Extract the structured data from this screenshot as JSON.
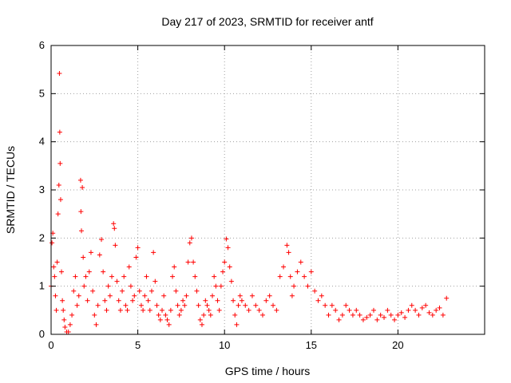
{
  "chart_data": {
    "type": "scatter",
    "title": "Day 217 of 2023, SRMTID for receiver antf",
    "xlabel": "GPS time / hours",
    "ylabel": "SRMTID / TECUs",
    "xlim": [
      0,
      25
    ],
    "ylim": [
      0,
      6
    ],
    "xticks": [
      0,
      5,
      10,
      15,
      20
    ],
    "yticks": [
      0,
      1,
      2,
      3,
      4,
      5,
      6
    ],
    "grid": true,
    "marker": "plus",
    "color": "#ff0000",
    "series": [
      {
        "name": "antf",
        "x": [
          0.0,
          0.05,
          0.1,
          0.15,
          0.2,
          0.25,
          0.3,
          0.35,
          0.4,
          0.45,
          0.48,
          0.5,
          0.52,
          0.55,
          0.6,
          0.65,
          0.7,
          0.75,
          0.8,
          0.9,
          1.0,
          1.1,
          1.2,
          1.3,
          1.4,
          1.5,
          1.6,
          1.7,
          1.72,
          1.75,
          1.8,
          1.85,
          1.9,
          2.0,
          2.1,
          2.2,
          2.3,
          2.4,
          2.5,
          2.6,
          2.7,
          2.8,
          2.9,
          3.0,
          3.1,
          3.2,
          3.3,
          3.4,
          3.5,
          3.6,
          3.65,
          3.7,
          3.8,
          3.9,
          4.0,
          4.1,
          4.2,
          4.3,
          4.4,
          4.5,
          4.6,
          4.7,
          4.8,
          4.9,
          5.0,
          5.1,
          5.2,
          5.3,
          5.4,
          5.5,
          5.6,
          5.7,
          5.8,
          5.9,
          6.0,
          6.1,
          6.2,
          6.3,
          6.4,
          6.5,
          6.6,
          6.7,
          6.8,
          6.9,
          7.0,
          7.1,
          7.2,
          7.3,
          7.4,
          7.5,
          7.6,
          7.7,
          7.8,
          7.9,
          8.0,
          8.1,
          8.2,
          8.3,
          8.4,
          8.5,
          8.6,
          8.7,
          8.8,
          8.9,
          9.0,
          9.1,
          9.2,
          9.3,
          9.4,
          9.5,
          9.6,
          9.7,
          9.8,
          9.9,
          10.0,
          10.1,
          10.2,
          10.3,
          10.4,
          10.5,
          10.6,
          10.7,
          10.8,
          10.9,
          11.0,
          11.2,
          11.4,
          11.6,
          11.8,
          12.0,
          12.2,
          12.4,
          12.6,
          12.8,
          13.0,
          13.2,
          13.4,
          13.6,
          13.7,
          13.8,
          13.9,
          14.0,
          14.2,
          14.4,
          14.6,
          14.8,
          15.0,
          15.2,
          15.4,
          15.6,
          15.8,
          16.0,
          16.2,
          16.4,
          16.6,
          16.8,
          17.0,
          17.2,
          17.4,
          17.6,
          17.8,
          18.0,
          18.2,
          18.4,
          18.6,
          18.8,
          19.0,
          19.2,
          19.4,
          19.6,
          19.8,
          20.0,
          20.2,
          20.4,
          20.6,
          20.8,
          21.0,
          21.2,
          21.4,
          21.6,
          21.8,
          22.0,
          22.2,
          22.4,
          22.6,
          22.8
        ],
        "y": [
          1.0,
          1.9,
          2.1,
          1.4,
          1.2,
          0.8,
          0.5,
          1.5,
          2.5,
          3.1,
          5.42,
          4.2,
          3.55,
          2.8,
          1.3,
          0.7,
          0.5,
          0.3,
          0.15,
          0.05,
          0.05,
          0.2,
          0.4,
          0.9,
          1.2,
          0.6,
          0.8,
          3.2,
          2.55,
          2.15,
          3.05,
          1.6,
          1.0,
          1.2,
          0.7,
          1.3,
          1.7,
          0.9,
          0.4,
          0.2,
          0.6,
          1.65,
          1.97,
          1.3,
          0.7,
          0.5,
          1.0,
          0.8,
          1.2,
          2.3,
          2.2,
          1.85,
          1.1,
          0.7,
          0.5,
          0.9,
          1.2,
          0.6,
          0.5,
          1.4,
          1.0,
          0.7,
          0.8,
          1.6,
          1.8,
          0.9,
          0.6,
          0.5,
          0.8,
          1.2,
          0.7,
          0.5,
          0.9,
          1.7,
          1.1,
          0.6,
          0.4,
          0.3,
          0.5,
          0.8,
          0.4,
          0.3,
          0.2,
          0.5,
          1.2,
          1.4,
          0.9,
          0.6,
          0.4,
          0.5,
          0.7,
          0.6,
          0.8,
          1.5,
          1.9,
          2.0,
          1.5,
          1.2,
          0.9,
          0.6,
          0.3,
          0.2,
          0.4,
          0.7,
          0.6,
          0.5,
          0.4,
          0.8,
          1.2,
          1.0,
          0.7,
          0.5,
          1.0,
          1.3,
          1.5,
          1.98,
          1.8,
          1.4,
          1.1,
          0.7,
          0.4,
          0.2,
          0.6,
          0.8,
          0.7,
          0.6,
          0.5,
          0.8,
          0.6,
          0.5,
          0.4,
          0.7,
          0.8,
          0.6,
          0.5,
          1.2,
          1.4,
          1.85,
          1.7,
          1.2,
          0.8,
          1.0,
          1.3,
          1.5,
          1.2,
          1.0,
          1.3,
          0.9,
          0.7,
          0.8,
          0.6,
          0.4,
          0.6,
          0.5,
          0.3,
          0.4,
          0.6,
          0.5,
          0.4,
          0.5,
          0.4,
          0.3,
          0.35,
          0.4,
          0.5,
          0.3,
          0.4,
          0.35,
          0.5,
          0.4,
          0.3,
          0.4,
          0.45,
          0.35,
          0.5,
          0.6,
          0.5,
          0.4,
          0.55,
          0.6,
          0.45,
          0.4,
          0.5,
          0.55,
          0.4,
          0.75
        ]
      }
    ]
  }
}
